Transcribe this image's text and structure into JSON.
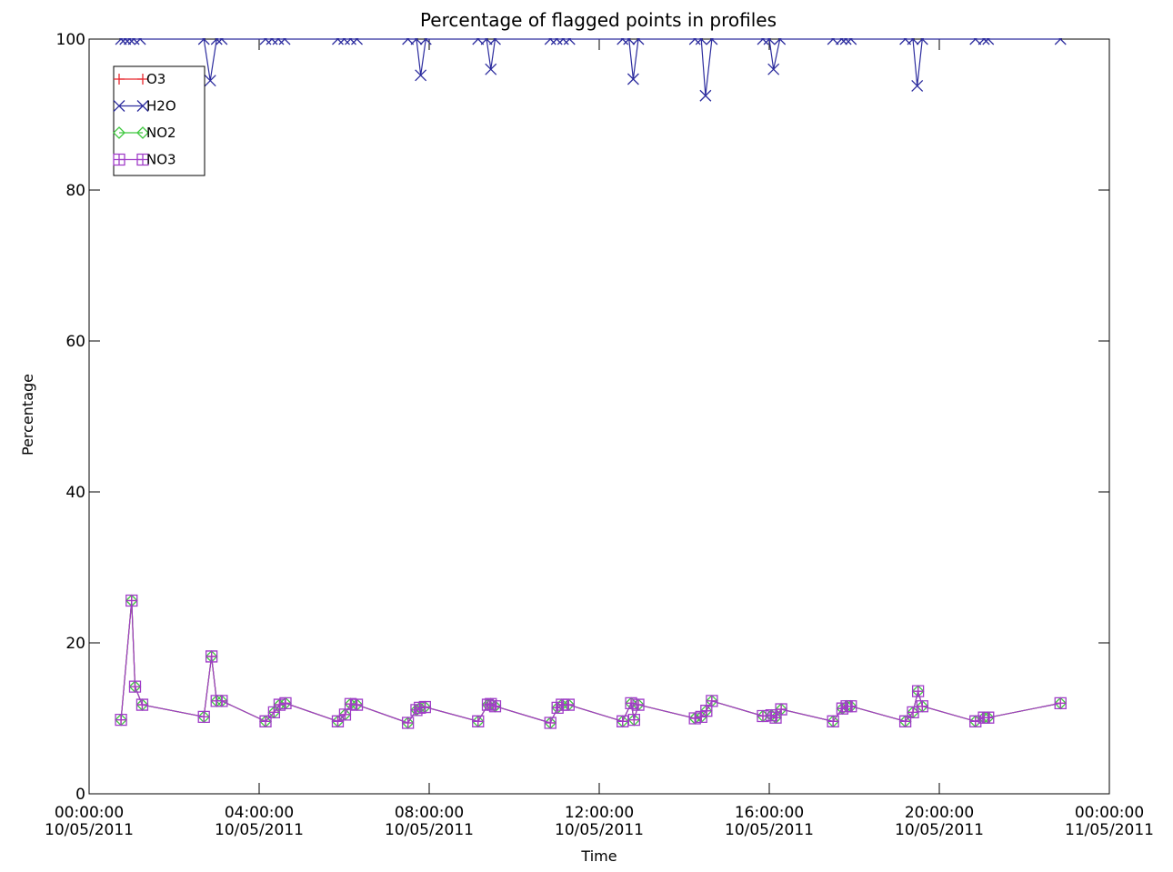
{
  "chart_data": {
    "type": "line",
    "title": "Percentage of flagged points in profiles",
    "xlabel": "Time",
    "ylabel": "Percentage",
    "xlim": [
      0,
      24
    ],
    "ylim": [
      0,
      100
    ],
    "y_ticks": [
      0,
      20,
      40,
      60,
      80,
      100
    ],
    "x_ticks": [
      {
        "hour": 0,
        "line1": "00:00:00",
        "line2": "10/05/2011"
      },
      {
        "hour": 4,
        "line1": "04:00:00",
        "line2": "10/05/2011"
      },
      {
        "hour": 8,
        "line1": "08:00:00",
        "line2": "10/05/2011"
      },
      {
        "hour": 12,
        "line1": "12:00:00",
        "line2": "10/05/2011"
      },
      {
        "hour": 16,
        "line1": "16:00:00",
        "line2": "10/05/2011"
      },
      {
        "hour": 20,
        "line1": "20:00:00",
        "line2": "10/05/2011"
      },
      {
        "hour": 24,
        "line1": "00:00:00",
        "line2": "11/05/2011"
      }
    ],
    "grid": false,
    "legend_position": "top-left",
    "series": [
      {
        "name": "O3",
        "color": "#e8262c",
        "marker": "plus",
        "points": [
          [
            0.75,
            9.8
          ],
          [
            1.0,
            25.6
          ],
          [
            1.08,
            14.2
          ],
          [
            1.25,
            11.8
          ],
          [
            2.7,
            10.2
          ],
          [
            2.88,
            18.2
          ],
          [
            3.0,
            12.3
          ],
          [
            3.12,
            12.3
          ],
          [
            4.15,
            9.6
          ],
          [
            4.35,
            10.8
          ],
          [
            4.48,
            11.8
          ],
          [
            4.62,
            12.0
          ],
          [
            5.85,
            9.6
          ],
          [
            6.02,
            10.5
          ],
          [
            6.15,
            11.9
          ],
          [
            6.3,
            11.8
          ],
          [
            7.5,
            9.4
          ],
          [
            7.7,
            11.1
          ],
          [
            7.78,
            11.4
          ],
          [
            7.9,
            11.5
          ],
          [
            9.15,
            9.6
          ],
          [
            9.38,
            11.8
          ],
          [
            9.45,
            11.9
          ],
          [
            9.55,
            11.6
          ],
          [
            10.85,
            9.4
          ],
          [
            11.02,
            11.4
          ],
          [
            11.12,
            11.8
          ],
          [
            11.28,
            11.8
          ],
          [
            12.55,
            9.6
          ],
          [
            12.75,
            12.0
          ],
          [
            12.82,
            9.8
          ],
          [
            12.92,
            11.8
          ],
          [
            14.25,
            10.0
          ],
          [
            14.4,
            10.2
          ],
          [
            14.52,
            11.0
          ],
          [
            14.65,
            12.3
          ],
          [
            15.85,
            10.3
          ],
          [
            16.05,
            10.4
          ],
          [
            16.15,
            10.1
          ],
          [
            16.28,
            11.2
          ],
          [
            17.5,
            9.6
          ],
          [
            17.72,
            11.3
          ],
          [
            17.82,
            11.6
          ],
          [
            17.92,
            11.6
          ],
          [
            19.2,
            9.6
          ],
          [
            19.38,
            10.8
          ],
          [
            19.5,
            13.6
          ],
          [
            19.6,
            11.6
          ],
          [
            20.85,
            9.6
          ],
          [
            21.05,
            10.1
          ],
          [
            21.15,
            10.1
          ],
          [
            22.85,
            12.0
          ]
        ]
      },
      {
        "name": "H2O",
        "color": "#2c2c9e",
        "marker": "x",
        "points": [
          [
            0.75,
            100
          ],
          [
            0.85,
            100
          ],
          [
            0.95,
            100
          ],
          [
            1.05,
            100
          ],
          [
            1.2,
            100
          ],
          [
            2.7,
            100
          ],
          [
            2.85,
            94.5
          ],
          [
            3.0,
            100
          ],
          [
            3.12,
            100
          ],
          [
            4.15,
            100
          ],
          [
            4.3,
            100
          ],
          [
            4.45,
            100
          ],
          [
            4.6,
            100
          ],
          [
            5.85,
            100
          ],
          [
            6.0,
            100
          ],
          [
            6.15,
            100
          ],
          [
            6.3,
            100
          ],
          [
            7.5,
            100
          ],
          [
            7.7,
            100
          ],
          [
            7.8,
            95.2
          ],
          [
            7.92,
            100
          ],
          [
            9.15,
            100
          ],
          [
            9.35,
            100
          ],
          [
            9.45,
            96.0
          ],
          [
            9.55,
            100
          ],
          [
            10.85,
            100
          ],
          [
            11.0,
            100
          ],
          [
            11.15,
            100
          ],
          [
            11.3,
            100
          ],
          [
            12.55,
            100
          ],
          [
            12.7,
            100
          ],
          [
            12.8,
            94.7
          ],
          [
            12.92,
            100
          ],
          [
            14.25,
            100
          ],
          [
            14.4,
            100
          ],
          [
            14.5,
            92.5
          ],
          [
            14.65,
            100
          ],
          [
            15.85,
            100
          ],
          [
            16.0,
            100
          ],
          [
            16.1,
            96.0
          ],
          [
            16.25,
            100
          ],
          [
            17.5,
            100
          ],
          [
            17.7,
            100
          ],
          [
            17.8,
            100
          ],
          [
            17.92,
            100
          ],
          [
            19.2,
            100
          ],
          [
            19.38,
            100
          ],
          [
            19.48,
            93.8
          ],
          [
            19.6,
            100
          ],
          [
            20.85,
            100
          ],
          [
            21.05,
            100
          ],
          [
            21.15,
            100
          ],
          [
            22.85,
            100
          ]
        ]
      },
      {
        "name": "NO2",
        "color": "#3fc83f",
        "marker": "diamond",
        "points": [
          [
            0.75,
            9.8
          ],
          [
            1.0,
            25.6
          ],
          [
            1.08,
            14.2
          ],
          [
            1.25,
            11.8
          ],
          [
            2.7,
            10.2
          ],
          [
            2.88,
            18.2
          ],
          [
            3.0,
            12.3
          ],
          [
            3.12,
            12.3
          ],
          [
            4.15,
            9.6
          ],
          [
            4.35,
            10.8
          ],
          [
            4.48,
            11.8
          ],
          [
            4.62,
            12.0
          ],
          [
            5.85,
            9.6
          ],
          [
            6.02,
            10.5
          ],
          [
            6.15,
            11.9
          ],
          [
            6.3,
            11.8
          ],
          [
            7.5,
            9.4
          ],
          [
            7.7,
            11.1
          ],
          [
            7.78,
            11.4
          ],
          [
            7.9,
            11.5
          ],
          [
            9.15,
            9.6
          ],
          [
            9.38,
            11.8
          ],
          [
            9.45,
            11.9
          ],
          [
            9.55,
            11.6
          ],
          [
            10.85,
            9.4
          ],
          [
            11.02,
            11.4
          ],
          [
            11.12,
            11.8
          ],
          [
            11.28,
            11.8
          ],
          [
            12.55,
            9.6
          ],
          [
            12.75,
            12.0
          ],
          [
            12.82,
            9.8
          ],
          [
            12.92,
            11.8
          ],
          [
            14.25,
            10.0
          ],
          [
            14.4,
            10.2
          ],
          [
            14.52,
            11.0
          ],
          [
            14.65,
            12.3
          ],
          [
            15.85,
            10.3
          ],
          [
            16.05,
            10.4
          ],
          [
            16.15,
            10.1
          ],
          [
            16.28,
            11.2
          ],
          [
            17.5,
            9.6
          ],
          [
            17.72,
            11.3
          ],
          [
            17.82,
            11.6
          ],
          [
            17.92,
            11.6
          ],
          [
            19.2,
            9.6
          ],
          [
            19.38,
            10.8
          ],
          [
            19.5,
            13.6
          ],
          [
            19.6,
            11.6
          ],
          [
            20.85,
            9.6
          ],
          [
            21.05,
            10.1
          ],
          [
            21.15,
            10.1
          ],
          [
            22.85,
            12.0
          ]
        ]
      },
      {
        "name": "NO3",
        "color": "#a03cc8",
        "marker": "square-plus",
        "points": [
          [
            0.75,
            9.8
          ],
          [
            1.0,
            25.6
          ],
          [
            1.08,
            14.2
          ],
          [
            1.25,
            11.8
          ],
          [
            2.7,
            10.2
          ],
          [
            2.88,
            18.2
          ],
          [
            3.0,
            12.3
          ],
          [
            3.12,
            12.3
          ],
          [
            4.15,
            9.6
          ],
          [
            4.35,
            10.8
          ],
          [
            4.48,
            11.8
          ],
          [
            4.62,
            12.0
          ],
          [
            5.85,
            9.6
          ],
          [
            6.02,
            10.5
          ],
          [
            6.15,
            11.9
          ],
          [
            6.3,
            11.8
          ],
          [
            7.5,
            9.4
          ],
          [
            7.7,
            11.1
          ],
          [
            7.78,
            11.4
          ],
          [
            7.9,
            11.5
          ],
          [
            9.15,
            9.6
          ],
          [
            9.38,
            11.8
          ],
          [
            9.45,
            11.9
          ],
          [
            9.55,
            11.6
          ],
          [
            10.85,
            9.4
          ],
          [
            11.02,
            11.4
          ],
          [
            11.12,
            11.8
          ],
          [
            11.28,
            11.8
          ],
          [
            12.55,
            9.6
          ],
          [
            12.75,
            12.0
          ],
          [
            12.82,
            9.8
          ],
          [
            12.92,
            11.8
          ],
          [
            14.25,
            10.0
          ],
          [
            14.4,
            10.2
          ],
          [
            14.52,
            11.0
          ],
          [
            14.65,
            12.3
          ],
          [
            15.85,
            10.3
          ],
          [
            16.05,
            10.4
          ],
          [
            16.15,
            10.1
          ],
          [
            16.28,
            11.2
          ],
          [
            17.5,
            9.6
          ],
          [
            17.72,
            11.3
          ],
          [
            17.82,
            11.6
          ],
          [
            17.92,
            11.6
          ],
          [
            19.2,
            9.6
          ],
          [
            19.38,
            10.8
          ],
          [
            19.5,
            13.6
          ],
          [
            19.6,
            11.6
          ],
          [
            20.85,
            9.6
          ],
          [
            21.05,
            10.1
          ],
          [
            21.15,
            10.1
          ],
          [
            22.85,
            12.0
          ]
        ]
      }
    ]
  }
}
